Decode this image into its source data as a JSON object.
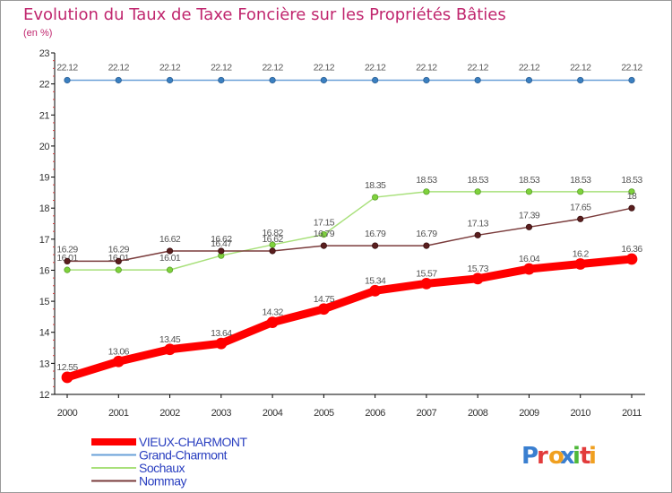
{
  "chart_data": {
    "type": "line",
    "title": "Evolution du Taux de Taxe Foncière sur les Propriétés Bâties",
    "subtitle": "(en %)",
    "x": [
      "2000",
      "2001",
      "2002",
      "2003",
      "2004",
      "2005",
      "2006",
      "2007",
      "2008",
      "2009",
      "2010",
      "2011"
    ],
    "ylim": [
      12,
      23
    ],
    "yticks": [
      "12",
      "13",
      "14",
      "15",
      "16",
      "17",
      "18",
      "19",
      "20",
      "21",
      "22",
      "23"
    ],
    "series": [
      {
        "name": "VIEUX-CHARMONT",
        "color": "#ff0000",
        "values": [
          12.55,
          13.06,
          13.45,
          13.64,
          14.32,
          14.75,
          15.34,
          15.57,
          15.73,
          16.04,
          16.2,
          16.36
        ],
        "labels": [
          "12.55",
          "13.06",
          "13.45",
          "13.64",
          "14.32",
          "14.75",
          "15.34",
          "15.57",
          "15.73",
          "16.04",
          "16.2",
          "16.36"
        ]
      },
      {
        "name": "Grand-Charmont",
        "color": "#6aa0d8",
        "values": [
          22.12,
          22.12,
          22.12,
          22.12,
          22.12,
          22.12,
          22.12,
          22.12,
          22.12,
          22.12,
          22.12,
          22.12
        ],
        "labels": [
          "22.12",
          "22.12",
          "22.12",
          "22.12",
          "22.12",
          "22.12",
          "22.12",
          "22.12",
          "22.12",
          "22.12",
          "22.12",
          "22.12"
        ]
      },
      {
        "name": "Sochaux",
        "color": "#a8e07a",
        "values": [
          16.01,
          16.01,
          16.01,
          16.47,
          16.82,
          17.15,
          18.35,
          18.53,
          18.53,
          18.53,
          18.53,
          18.53
        ],
        "labels": [
          "16.01",
          "16.01",
          "16.01",
          "16.47",
          "16.82",
          "17.15",
          "18.35",
          "18.53",
          "18.53",
          "18.53",
          "18.53",
          "18.53"
        ]
      },
      {
        "name": "Nommay",
        "color": "#7a3b3b",
        "values": [
          16.29,
          16.29,
          16.62,
          16.62,
          16.62,
          16.79,
          16.79,
          16.79,
          17.13,
          17.39,
          17.65,
          18
        ],
        "labels": [
          "16.29",
          "16.29",
          "16.62",
          "16.62",
          "16.62",
          "16.79",
          "16.79",
          "16.79",
          "17.13",
          "17.39",
          "17.65",
          "18"
        ]
      }
    ]
  },
  "logo": {
    "text": "Proxiti",
    "colors": [
      "#3a7fd0",
      "#e23b3b",
      "#f0a020",
      "#3a7fd0",
      "#4fb83a",
      "#e23b3b",
      "#f0a020"
    ]
  }
}
